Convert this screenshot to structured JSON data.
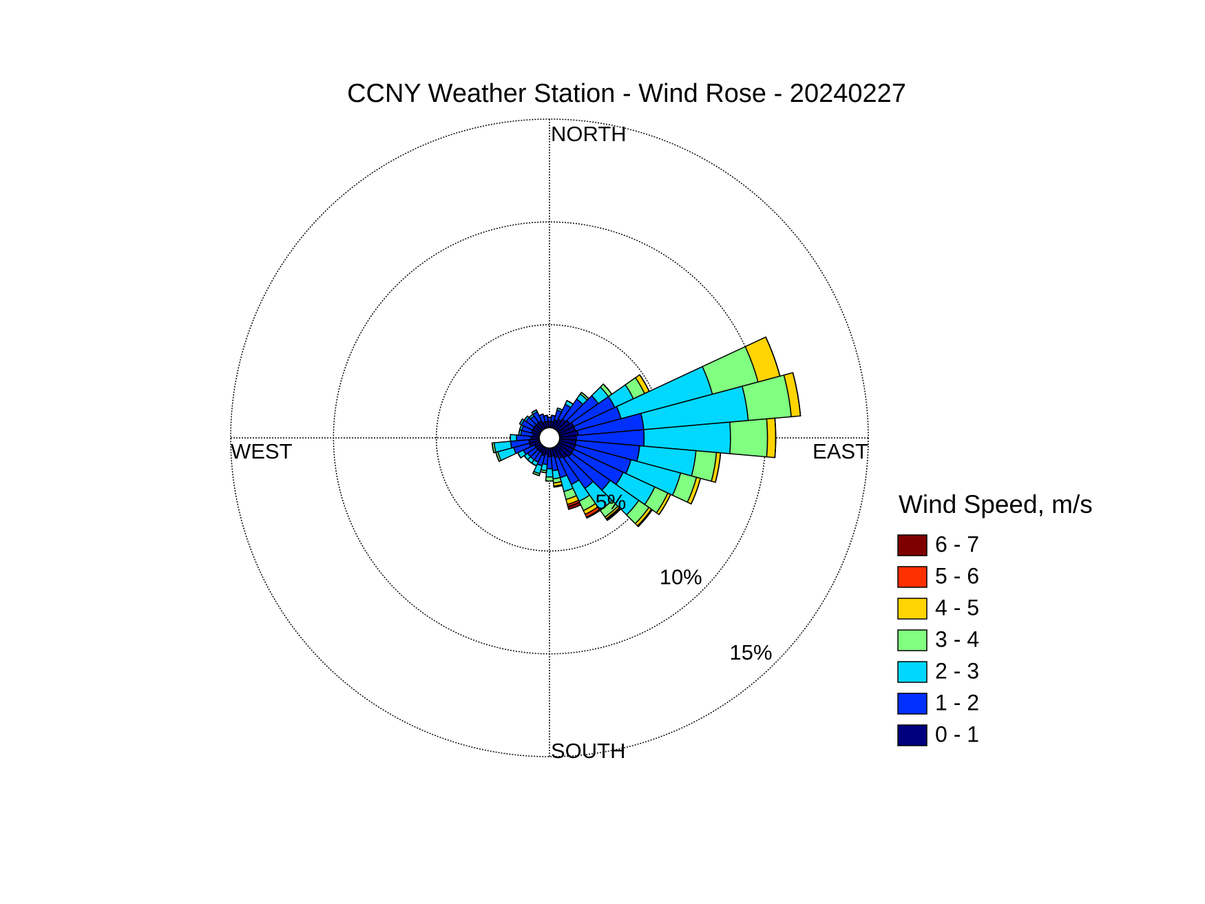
{
  "chart_data": {
    "type": "windrose",
    "title": "CCNY Weather Station - Wind Rose - 20240227",
    "direction_labels": [
      "NORTH",
      "EAST",
      "SOUTH",
      "WEST"
    ],
    "legend_title": "Wind Speed, m/s",
    "directions": [
      0,
      10,
      20,
      30,
      40,
      50,
      60,
      70,
      80,
      90,
      100,
      110,
      120,
      130,
      140,
      150,
      160,
      170,
      180,
      190,
      200,
      210,
      220,
      230,
      240,
      250,
      260,
      270,
      280,
      290,
      300,
      310,
      320,
      330,
      340,
      350
    ],
    "rlim": [
      0,
      15
    ],
    "rticks": [
      {
        "value": 5,
        "label": "5%"
      },
      {
        "value": 10,
        "label": "10%"
      },
      {
        "value": 15,
        "label": "15%"
      }
    ],
    "series": [
      {
        "name": "0 - 1",
        "color": "#00007f",
        "values": [
          0.3,
          0.3,
          0.4,
          0.5,
          0.6,
          0.7,
          0.8,
          0.8,
          0.9,
          0.8,
          0.8,
          0.8,
          0.8,
          0.8,
          0.7,
          0.6,
          0.5,
          0.4,
          0.4,
          0.3,
          0.4,
          0.3,
          0.3,
          0.3,
          0.3,
          0.5,
          0.5,
          0.4,
          0.3,
          0.4,
          0.4,
          0.4,
          0.4,
          0.4,
          0.3,
          0.3
        ]
      },
      {
        "name": "1 - 2",
        "color": "#0030ff",
        "values": [
          0.2,
          0.3,
          0.5,
          0.8,
          1.2,
          1.7,
          2.2,
          2.3,
          3.2,
          3.3,
          3.1,
          2.8,
          2.65,
          2.3,
          1.8,
          1.4,
          1.0,
          0.7,
          0.6,
          0.5,
          0.5,
          0.5,
          0.5,
          0.5,
          0.6,
          0.8,
          0.9,
          0.7,
          0.6,
          0.5,
          0.6,
          0.5,
          0.4,
          0.5,
          0.4,
          0.3
        ]
      },
      {
        "name": "2 - 3",
        "color": "#00d8ff",
        "values": [
          0,
          0,
          0.1,
          0.2,
          0.3,
          0.6,
          1.0,
          4.6,
          5.1,
          4.2,
          2.75,
          2.5,
          1.7,
          1.7,
          1.3,
          0.9,
          0.7,
          0.4,
          0.4,
          0.3,
          0.4,
          0.2,
          0.2,
          0.2,
          0.3,
          0.8,
          0.8,
          0.3,
          0.1,
          0.1,
          0.1,
          0.1,
          0.1,
          0.1,
          0,
          0
        ]
      },
      {
        "name": "3 - 4",
        "color": "#80ff80",
        "values": [
          0,
          0,
          0,
          0,
          0.1,
          0.2,
          0.6,
          2.3,
          2.1,
          1.8,
          1.0,
          0.8,
          0.7,
          0.6,
          0.4,
          0.5,
          0.4,
          0.2,
          0.2,
          0.1,
          0.1,
          0,
          0,
          0,
          0,
          0.1,
          0.1,
          0,
          0,
          0,
          0,
          0,
          0,
          0,
          0,
          0
        ]
      },
      {
        "name": "4 - 5",
        "color": "#ffd400",
        "values": [
          0,
          0,
          0,
          0,
          0,
          0,
          0.25,
          1.1,
          0.45,
          0.4,
          0.2,
          0.2,
          0.15,
          0.15,
          0.1,
          0.2,
          0.25,
          0.15,
          0,
          0,
          0,
          0,
          0,
          0,
          0,
          0,
          0,
          0,
          0,
          0,
          0,
          0,
          0,
          0,
          0,
          0
        ]
      },
      {
        "name": "5 - 6",
        "color": "#ff3000",
        "values": [
          0,
          0,
          0,
          0,
          0,
          0,
          0,
          0,
          0,
          0,
          0,
          0,
          0,
          0.05,
          0.05,
          0.15,
          0.1,
          0.05,
          0,
          0,
          0,
          0,
          0,
          0,
          0,
          0,
          0,
          0,
          0,
          0,
          0,
          0,
          0,
          0,
          0,
          0
        ]
      },
      {
        "name": "6 - 7",
        "color": "#7f0000",
        "values": [
          0,
          0,
          0,
          0,
          0,
          0,
          0,
          0,
          0,
          0,
          0,
          0,
          0,
          0,
          0.05,
          0.05,
          0.15,
          0,
          0,
          0,
          0,
          0,
          0,
          0,
          0,
          0,
          0,
          0,
          0,
          0,
          0,
          0,
          0,
          0,
          0,
          0
        ]
      }
    ]
  }
}
